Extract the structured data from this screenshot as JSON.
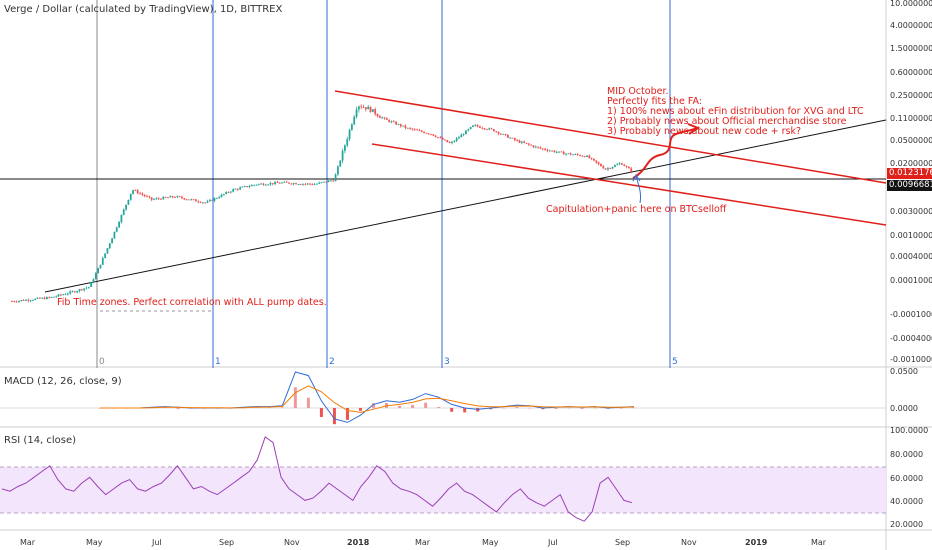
{
  "header": {
    "title": "Verge / Dollar (calculated by TradingView), 1D, BITTREX"
  },
  "macd": {
    "title": "MACD (12, 26, close, 9)"
  },
  "rsi": {
    "title": "RSI (14, close)"
  },
  "annotations": {
    "top_lines": [
      "MID October.",
      "Perfectly fits the FA:",
      "1) 100% news about eFin distribution for XVG and LTC",
      "2) Probably news about Official merchandise store",
      "3) Probably news about new code + rsk?"
    ],
    "capitulation": "Capitulation+panic here on BTCselloff",
    "fib": "Fib Time zones. Perfect correlation with ALL pump dates."
  },
  "price_tags": {
    "current": "0.01231762",
    "level": "0.00966811"
  },
  "colors": {
    "accent_red": "#e0201b",
    "fib_blue": "#2f6bd8",
    "candle_green": "#26a69a",
    "candle_red": "#ef5350",
    "rsi_purple": "#9b3fb5",
    "rsi_band": "#f3e6fc"
  },
  "chart_data": {
    "type": "candlestick",
    "scale": "log",
    "price_axis_ticks": [
      "10.0000000",
      "4.00000000",
      "1.50000000",
      "0.60000000",
      "0.25000000",
      "0.11000000",
      "0.05000000",
      "0.02000000",
      "0.00300000",
      "0.00100000",
      "0.00040000",
      "0.00010000",
      "-0.00010000",
      "-0.00040000",
      "-0.00100000"
    ],
    "time_axis_labels": [
      "Mar",
      "May",
      "Jul",
      "Sep",
      "Nov",
      "2018",
      "Mar",
      "May",
      "Jul",
      "Sep",
      "Nov",
      "2019",
      "Mar"
    ],
    "fib_time_zone_labels": [
      "0",
      "1",
      "2",
      "3",
      "5"
    ],
    "price_path": [
      {
        "month": 0,
        "price": 6e-05
      },
      {
        "month": 1,
        "price": 7e-05
      },
      {
        "month": 1.6,
        "price": 9e-05
      },
      {
        "month": 2.0,
        "price": 0.00011
      },
      {
        "month": 2.3,
        "price": 0.0003
      },
      {
        "month": 2.6,
        "price": 0.0009
      },
      {
        "month": 3.1,
        "price": 0.006
      },
      {
        "month": 3.6,
        "price": 0.004
      },
      {
        "month": 4.2,
        "price": 0.0045
      },
      {
        "month": 5.0,
        "price": 0.0035
      },
      {
        "month": 5.7,
        "price": 0.006
      },
      {
        "month": 6.3,
        "price": 0.0075
      },
      {
        "month": 7.0,
        "price": 0.008
      },
      {
        "month": 7.8,
        "price": 0.0075
      },
      {
        "month": 8.3,
        "price": 0.009
      },
      {
        "month": 8.7,
        "price": 0.07
      },
      {
        "month": 8.9,
        "price": 0.2
      },
      {
        "month": 9.2,
        "price": 0.17
      },
      {
        "month": 9.6,
        "price": 0.11
      },
      {
        "month": 10.2,
        "price": 0.075
      },
      {
        "month": 10.8,
        "price": 0.06
      },
      {
        "month": 11.3,
        "price": 0.04
      },
      {
        "month": 11.9,
        "price": 0.085
      },
      {
        "month": 12.4,
        "price": 0.07
      },
      {
        "month": 13.0,
        "price": 0.045
      },
      {
        "month": 13.6,
        "price": 0.033
      },
      {
        "month": 14.2,
        "price": 0.027
      },
      {
        "month": 14.8,
        "price": 0.024
      },
      {
        "month": 15.3,
        "price": 0.014
      },
      {
        "month": 15.7,
        "price": 0.018
      },
      {
        "month": 16.0,
        "price": 0.0123
      }
    ],
    "macd": [
      0,
      0,
      0,
      0,
      0.001,
      0.002,
      0.001,
      0,
      0,
      0,
      0,
      0.001,
      0.002,
      0.002,
      0.003,
      0.05,
      0.045,
      0.01,
      -0.015,
      -0.02,
      -0.01,
      0.005,
      0.01,
      0.008,
      0.012,
      0.02,
      0.015,
      0.005,
      0,
      -0.002,
      0,
      0.002,
      0.004,
      0.003,
      0,
      0.001,
      0.002,
      0.001,
      0.002,
      0,
      0.001,
      0.002
    ],
    "rsi": [
      50,
      48,
      52,
      55,
      60,
      65,
      70,
      58,
      50,
      48,
      55,
      60,
      52,
      45,
      50,
      55,
      58,
      50,
      48,
      52,
      55,
      62,
      70,
      60,
      50,
      52,
      48,
      45,
      50,
      55,
      60,
      65,
      75,
      95,
      90,
      60,
      50,
      45,
      40,
      42,
      48,
      55,
      50,
      45,
      40,
      52,
      60,
      70,
      65,
      55,
      50,
      48,
      45,
      40,
      35,
      42,
      50,
      55,
      48,
      45,
      40,
      35,
      30,
      38,
      45,
      50,
      42,
      38,
      35,
      40,
      45,
      30,
      25,
      22,
      30,
      55,
      60,
      50,
      40,
      38
    ]
  }
}
